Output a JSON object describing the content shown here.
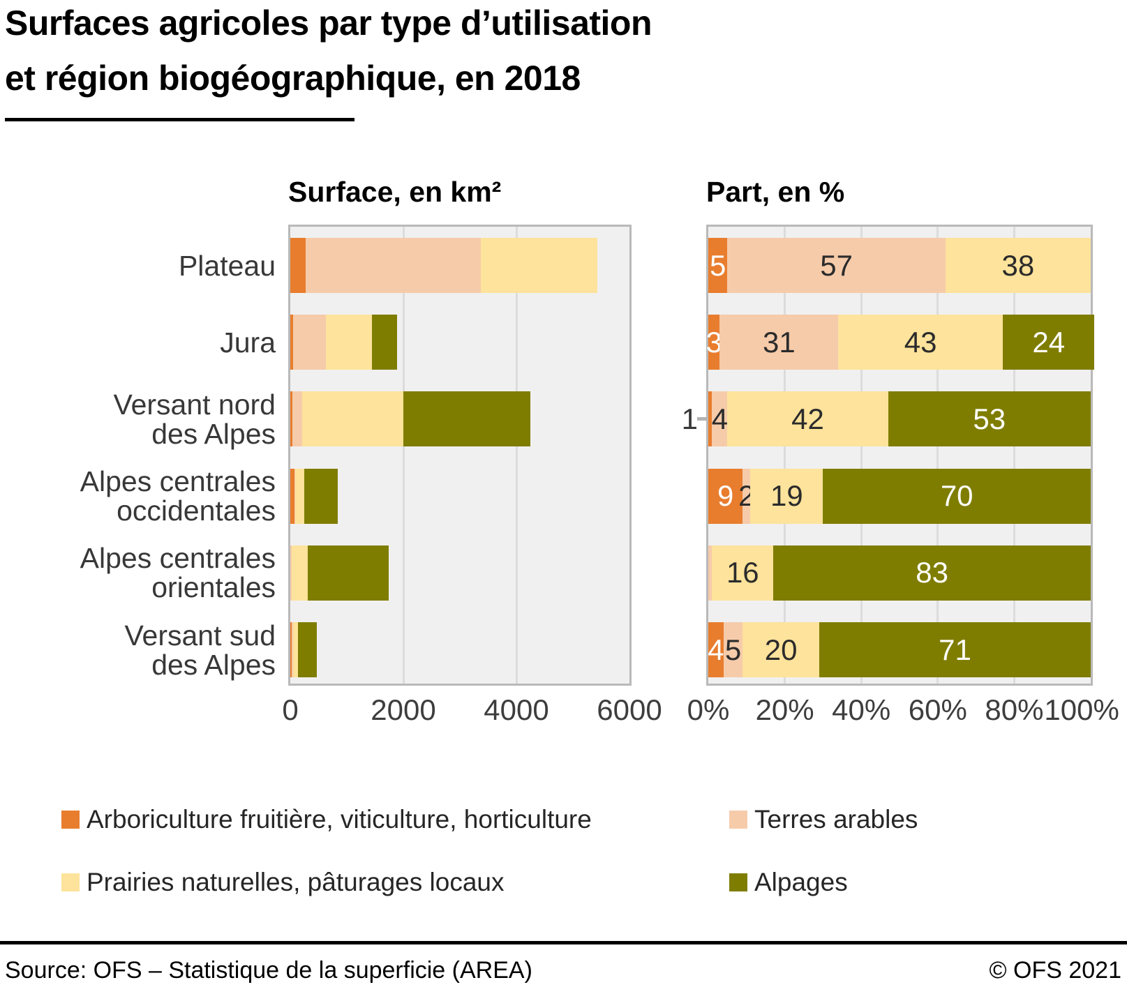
{
  "title": {
    "line1": "Surfaces agricoles par type d’utilisation",
    "line2": "et région biogéographique, en 2018"
  },
  "chart_data": [
    {
      "type": "bar",
      "orientation": "horizontal",
      "stacked": true,
      "title": "Surface, en km²",
      "categories": [
        "Plateau",
        "Jura",
        "Versant nord des Alpes",
        "Alpes centrales occidentales",
        "Alpes centrales orientales",
        "Versant sud des Alpes"
      ],
      "category_label_lines": [
        [
          "Plateau"
        ],
        [
          "Jura"
        ],
        [
          "Versant nord",
          "des Alpes"
        ],
        [
          "Alpes centrales",
          "occidentales"
        ],
        [
          "Alpes centrales",
          "orientales"
        ],
        [
          "Versant sud",
          "des Alpes"
        ]
      ],
      "series": [
        {
          "name": "Arboriculture fruitière, viticulture, horticulture",
          "color": "#e87d2e",
          "values": [
            270,
            55,
            40,
            75,
            5,
            20
          ]
        },
        {
          "name": "Terres arables",
          "color": "#f6cbaa",
          "values": [
            3095,
            580,
            170,
            15,
            15,
            25
          ]
        },
        {
          "name": "Prairies naturelles, pâturages locaux",
          "color": "#fde39b",
          "values": [
            2065,
            805,
            1790,
            160,
            285,
            95
          ]
        },
        {
          "name": "Alpages",
          "color": "#7f7d00",
          "values": [
            0,
            450,
            2250,
            590,
            1440,
            335
          ]
        }
      ],
      "xlim": [
        0,
        6000
      ],
      "xticks": [
        "0",
        "2000",
        "4000",
        "6000"
      ],
      "grid": true,
      "unit": "km²",
      "note": "values estimated from bar lengths"
    },
    {
      "type": "bar",
      "orientation": "horizontal",
      "stacked": true,
      "percent": true,
      "title": "Part, en %",
      "categories": [
        "Plateau",
        "Jura",
        "Versant nord des Alpes",
        "Alpes centrales occidentales",
        "Alpes centrales orientales",
        "Versant sud des Alpes"
      ],
      "series": [
        {
          "name": "Arboriculture fruitière, viticulture, horticulture",
          "color": "#e87d2e",
          "label_color": "#ffffff",
          "values": [
            5,
            3,
            1,
            9,
            0,
            4
          ],
          "labels": [
            "5",
            "3",
            null,
            "9",
            null,
            "4"
          ]
        },
        {
          "name": "Terres arables",
          "color": "#f6cbaa",
          "label_color": "#2b2b2b",
          "values": [
            57,
            31,
            4,
            2,
            1,
            5
          ],
          "labels": [
            "57",
            "31",
            "4",
            "2",
            null,
            "5"
          ]
        },
        {
          "name": "Prairies naturelles, pâturages locaux",
          "color": "#fde39b",
          "label_color": "#2b2b2b",
          "values": [
            38,
            43,
            42,
            19,
            16,
            20
          ],
          "labels": [
            "38",
            "43",
            "42",
            "19",
            "16",
            "20"
          ]
        },
        {
          "name": "Alpages",
          "color": "#7f7d00",
          "label_color": "#ffffff",
          "values": [
            0,
            24,
            53,
            70,
            83,
            71
          ],
          "labels": [
            null,
            "24",
            "53",
            "70",
            "83",
            "71"
          ]
        }
      ],
      "xlim": [
        0,
        100
      ],
      "xticks": [
        "0%",
        "20%",
        "40%",
        "60%",
        "80%",
        "100%"
      ],
      "grid": true,
      "callout": {
        "text": "1",
        "category_index": 2,
        "series_index": 0
      }
    }
  ],
  "legend": {
    "items": [
      {
        "label": "Arboriculture fruitière, viticulture, horticulture",
        "color": "#e87d2e"
      },
      {
        "label": "Terres arables",
        "color": "#f6cbaa"
      },
      {
        "label": "Prairies naturelles, pâturages locaux",
        "color": "#fde39b"
      },
      {
        "label": "Alpages",
        "color": "#7f7d00"
      }
    ]
  },
  "footer": {
    "source": "Source: OFS – Statistique de la superficie (AREA)",
    "copyright": "© OFS 2021"
  },
  "colors": {
    "orange": "#e87d2e",
    "salmon": "#f6cbaa",
    "yellow": "#fde39b",
    "olive": "#7f7d00",
    "plot_background": "#f0f0f0",
    "gridline": "#dcdcdc",
    "plot_border": "#b9b9b9",
    "label_text": "#383838"
  }
}
